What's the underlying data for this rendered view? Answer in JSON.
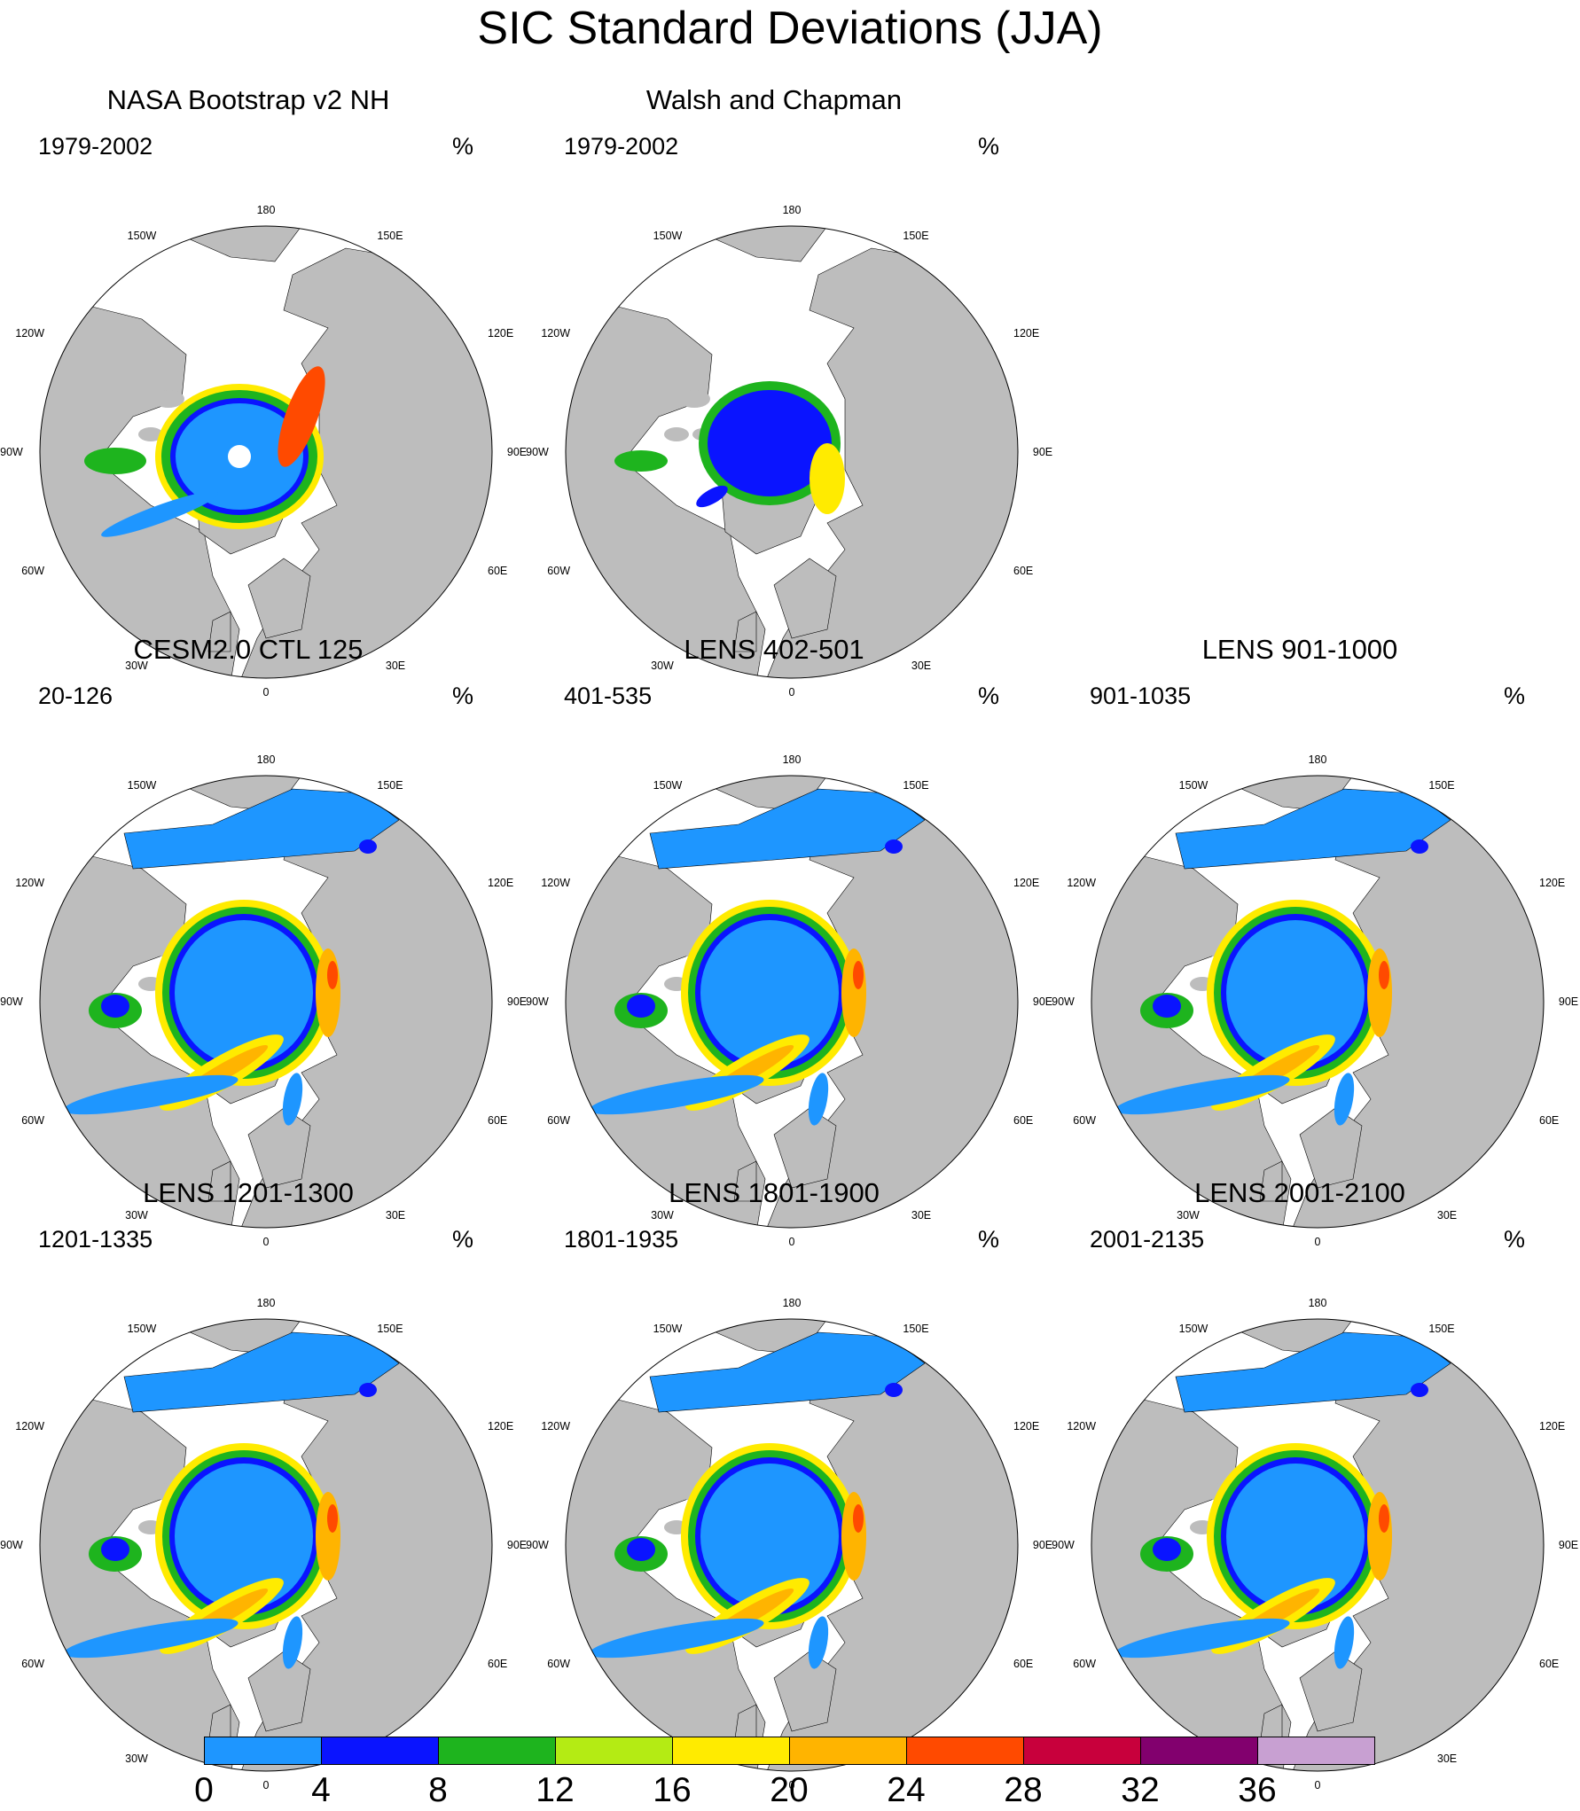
{
  "title": "SIC Standard Deviations (JJA)",
  "colors": {
    "land": "#bdbdbd",
    "ocean": "#ffffff",
    "levels": [
      "#1e96ff",
      "#0a14ff",
      "#1eb41e",
      "#b4eb14",
      "#ffeb00",
      "#ffb400",
      "#ff4a00",
      "#c8003c",
      "#82006e",
      "#c8a0d2"
    ]
  },
  "map_labels": {
    "top": "180",
    "bottom": "0",
    "left": "90W",
    "right": "90E",
    "l150": "150W",
    "l120": "120W",
    "l60": "60W",
    "l30": "30W",
    "r150": "150E",
    "r120": "120E",
    "r60": "60E",
    "r30": "30E"
  },
  "panels": [
    {
      "title": "NASA Bootstrap v2 NH",
      "years": "1979-2002",
      "units": "%",
      "style": "obs1"
    },
    {
      "title": "Walsh and Chapman",
      "years": "1979-2002",
      "units": "%",
      "style": "obs2"
    },
    {
      "title": "CESM2.0 CTL 125",
      "years": "20-126",
      "units": "%",
      "style": "model"
    },
    {
      "title": "LENS 402-501",
      "years": "401-535",
      "units": "%",
      "style": "model"
    },
    {
      "title": "LENS 901-1000",
      "years": "901-1035",
      "units": "%",
      "style": "model"
    },
    {
      "title": "LENS 1201-1300",
      "years": "1201-1335",
      "units": "%",
      "style": "model"
    },
    {
      "title": "LENS 1801-1900",
      "years": "1801-1935",
      "units": "%",
      "style": "model"
    },
    {
      "title": "LENS 2001-2100",
      "years": "2001-2135",
      "units": "%",
      "style": "model"
    }
  ],
  "colorbar": {
    "ticks": [
      "0",
      "4",
      "8",
      "12",
      "16",
      "20",
      "24",
      "28",
      "32",
      "36"
    ]
  }
}
